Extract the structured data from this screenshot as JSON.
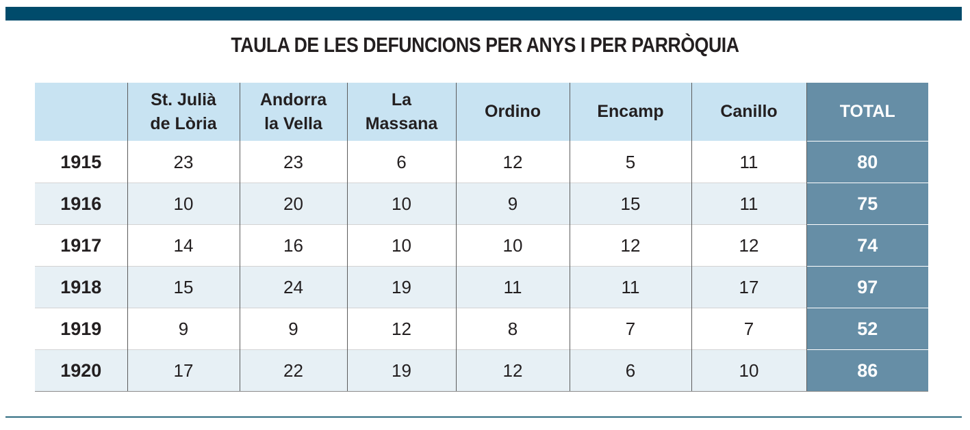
{
  "colors": {
    "top_bar": "#004b6b",
    "header_bg": "#c8e3f2",
    "total_bg": "#668ea6",
    "row_tint": "#e7f0f5",
    "bottom_rule": "#2e6b80"
  },
  "title": "TAULA DE LES DEFUNCIONS PER ANYS I PER PARRÒQUIA",
  "chart_data": {
    "type": "table",
    "title": "TAULA DE LES DEFUNCIONS PER ANYS I PER PARRÒQUIA",
    "columns": [
      {
        "lines": [
          ""
        ]
      },
      {
        "lines": [
          "St. Julià",
          "de Lòria"
        ]
      },
      {
        "lines": [
          "Andorra",
          "la Vella"
        ]
      },
      {
        "lines": [
          "La",
          "Massana"
        ]
      },
      {
        "lines": [
          "Ordino"
        ]
      },
      {
        "lines": [
          "Encamp"
        ]
      },
      {
        "lines": [
          "Canillo"
        ]
      },
      {
        "lines": [
          "TOTAL"
        ]
      }
    ],
    "rows": [
      {
        "year": "1915",
        "values": [
          23,
          23,
          6,
          12,
          5,
          11
        ],
        "total": 80
      },
      {
        "year": "1916",
        "values": [
          10,
          20,
          10,
          9,
          15,
          11
        ],
        "total": 75
      },
      {
        "year": "1917",
        "values": [
          14,
          16,
          10,
          10,
          12,
          12
        ],
        "total": 74
      },
      {
        "year": "1918",
        "values": [
          15,
          24,
          19,
          11,
          11,
          17
        ],
        "total": 97
      },
      {
        "year": "1919",
        "values": [
          9,
          9,
          12,
          8,
          7,
          7
        ],
        "total": 52
      },
      {
        "year": "1920",
        "values": [
          17,
          22,
          19,
          12,
          6,
          10
        ],
        "total": 86
      }
    ]
  }
}
